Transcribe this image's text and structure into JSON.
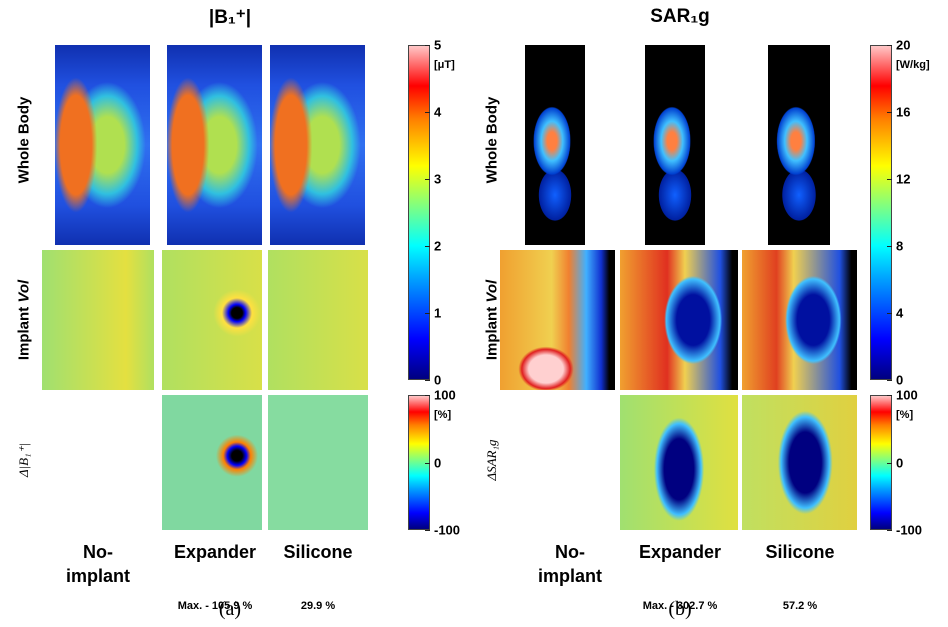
{
  "panel_a": {
    "title": "|B₁⁺|",
    "row_labels": {
      "whole_body": "Whole Body",
      "implant": "Implant",
      "vol": "Vol",
      "delta": "Δ|B₁⁺|"
    },
    "columns": [
      "No-implant",
      "Expander",
      "Silicone"
    ],
    "max_labels": [
      "Max. - 105.9 %",
      "29.9 %"
    ],
    "colorbar": {
      "unit": "[μT]",
      "ticks": [
        5,
        4,
        3,
        2,
        1,
        0
      ]
    },
    "delta_colorbar": {
      "unit": "[%]",
      "ticks": [
        100,
        0,
        -100
      ]
    },
    "caption": "(a)"
  },
  "panel_b": {
    "title": "SAR₁g",
    "row_labels": {
      "whole_body": "Whole Body",
      "implant": "Implant",
      "vol": "Vol",
      "delta": "ΔSAR₁g"
    },
    "columns": [
      "No-implant",
      "Expander",
      "Silicone"
    ],
    "max_labels": [
      "Max. - 302.7 %",
      "57.2 %"
    ],
    "colorbar": {
      "unit": "[W/kg]",
      "ticks": [
        20,
        16,
        12,
        8,
        4,
        0
      ]
    },
    "delta_colorbar": {
      "unit": "[%]",
      "ticks": [
        100,
        0,
        -100
      ]
    },
    "caption": "(b)"
  }
}
